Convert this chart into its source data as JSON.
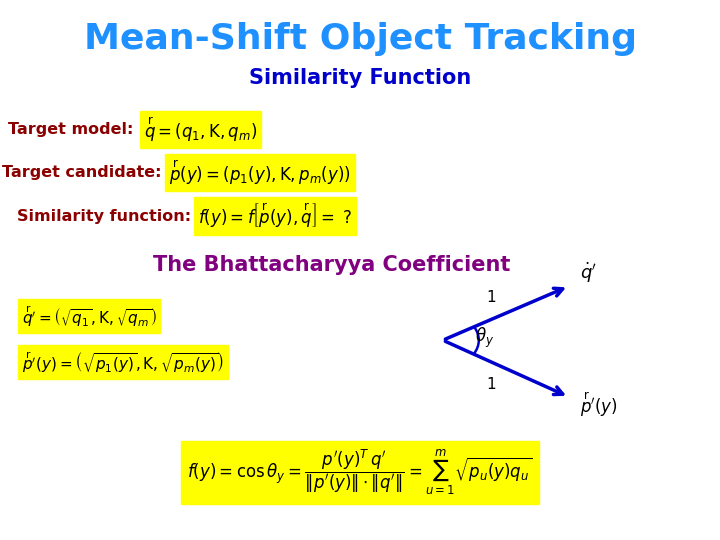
{
  "title": "Mean-Shift Object Tracking",
  "subtitle": "Similarity Function",
  "title_color": "#1E90FF",
  "subtitle_color": "#0000CC",
  "bg_color": "#FFFFFF",
  "label_color": "#8B0000",
  "bhatta_color": "#800080",
  "formula_bg": "#FFFF00",
  "arrow_color": "#0000CC",
  "label_target_model": "Target model:",
  "label_target_candidate": "Target candidate:",
  "label_similarity": "Similarity function:",
  "bhatta_label": "The Bhattacharyya Coefficient"
}
